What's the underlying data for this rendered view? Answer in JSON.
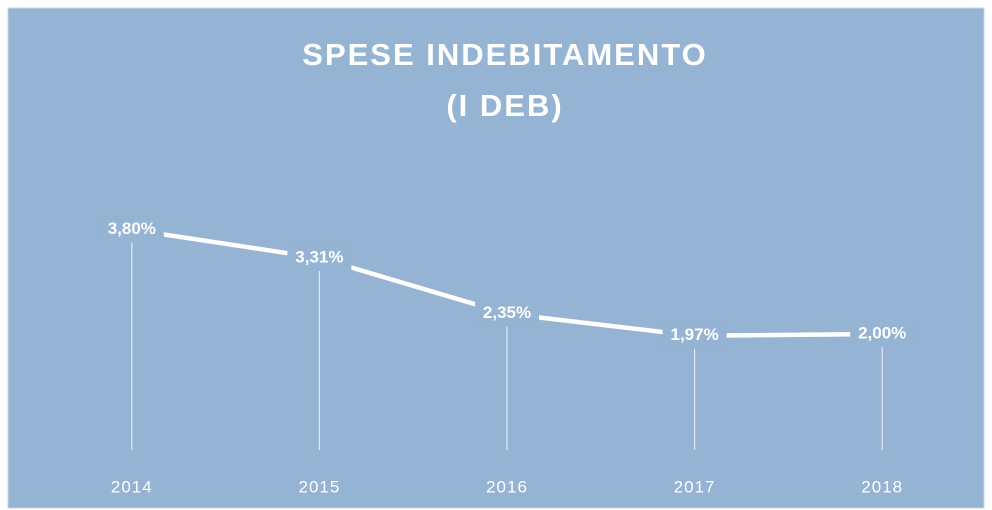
{
  "chart_data": {
    "type": "line",
    "title": [
      "SPESE INDEBITAMENTO",
      "(I DEB)"
    ],
    "categories": [
      "2014",
      "2015",
      "2016",
      "2017",
      "2018"
    ],
    "values": [
      3.8,
      3.31,
      2.35,
      1.97,
      2.0
    ],
    "value_labels": [
      "3,80%",
      "3,31%",
      "2,35%",
      "1,97%",
      "2,00%"
    ],
    "color": "#ffffff",
    "background": "#95b3d2",
    "ylim": [
      0,
      4
    ]
  }
}
